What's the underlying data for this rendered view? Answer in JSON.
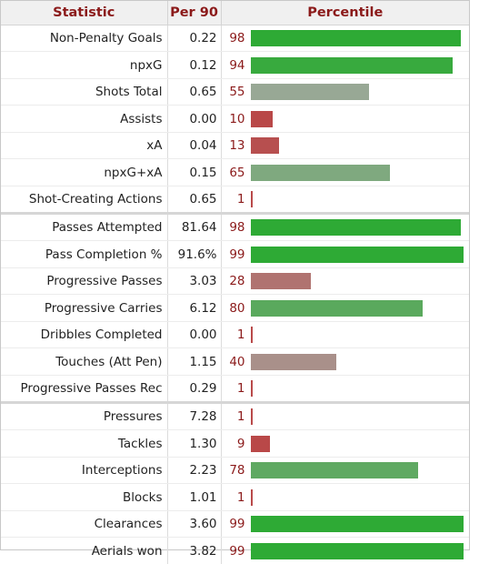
{
  "headers": {
    "statistic": "Statistic",
    "per90": "Per 90",
    "percentile": "Percentile"
  },
  "chart_data": {
    "type": "table",
    "columns": [
      "Statistic",
      "Per 90",
      "Percentile"
    ],
    "groups": [
      [
        {
          "stat": "Non-Penalty Goals",
          "per90": "0.22",
          "pct": 98
        },
        {
          "stat": "npxG",
          "per90": "0.12",
          "pct": 94
        },
        {
          "stat": "Shots Total",
          "per90": "0.65",
          "pct": 55
        },
        {
          "stat": "Assists",
          "per90": "0.00",
          "pct": 10
        },
        {
          "stat": "xA",
          "per90": "0.04",
          "pct": 13
        },
        {
          "stat": "npxG+xA",
          "per90": "0.15",
          "pct": 65
        },
        {
          "stat": "Shot-Creating Actions",
          "per90": "0.65",
          "pct": 1
        }
      ],
      [
        {
          "stat": "Passes Attempted",
          "per90": "81.64",
          "pct": 98
        },
        {
          "stat": "Pass Completion %",
          "per90": "91.6%",
          "pct": 99
        },
        {
          "stat": "Progressive Passes",
          "per90": "3.03",
          "pct": 28
        },
        {
          "stat": "Progressive Carries",
          "per90": "6.12",
          "pct": 80
        },
        {
          "stat": "Dribbles Completed",
          "per90": "0.00",
          "pct": 1
        },
        {
          "stat": "Touches (Att Pen)",
          "per90": "1.15",
          "pct": 40
        },
        {
          "stat": "Progressive Passes Rec",
          "per90": "0.29",
          "pct": 1
        }
      ],
      [
        {
          "stat": "Pressures",
          "per90": "7.28",
          "pct": 1
        },
        {
          "stat": "Tackles",
          "per90": "1.30",
          "pct": 9
        },
        {
          "stat": "Interceptions",
          "per90": "2.23",
          "pct": 78
        },
        {
          "stat": "Blocks",
          "per90": "1.01",
          "pct": 1
        },
        {
          "stat": "Clearances",
          "per90": "3.60",
          "pct": 99
        },
        {
          "stat": "Aerials won",
          "per90": "3.82",
          "pct": 99
        }
      ]
    ],
    "xlim": [
      0,
      100
    ]
  },
  "colors": {
    "header_text": "#8b1a1a",
    "header_bg": "#f0f0f0",
    "high": "#2eaa35",
    "low": "#b94a4a",
    "mid": "#a0a8a0"
  }
}
